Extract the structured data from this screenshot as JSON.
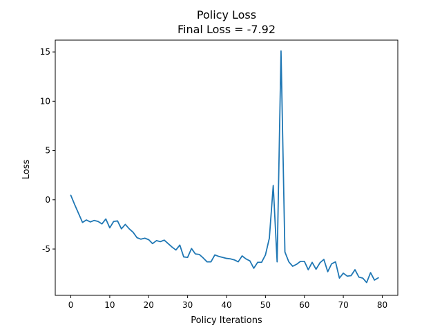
{
  "chart_data": {
    "type": "line",
    "title": "Policy Loss",
    "subtitle": "Final Loss = -7.92",
    "xlabel": "Policy Iterations",
    "ylabel": "Loss",
    "xlim": [
      -4,
      84
    ],
    "ylim": [
      -9.7,
      16.2
    ],
    "xticks": [
      0,
      10,
      20,
      30,
      40,
      50,
      60,
      70,
      80
    ],
    "yticks": [
      -5,
      0,
      5,
      10,
      15
    ],
    "grid": false,
    "series": [
      {
        "color": "#1f77b4",
        "x": [
          0,
          1,
          2,
          3,
          4,
          5,
          6,
          7,
          8,
          9,
          10,
          11,
          12,
          13,
          14,
          15,
          16,
          17,
          18,
          19,
          20,
          21,
          22,
          23,
          24,
          25,
          26,
          27,
          28,
          29,
          30,
          31,
          32,
          33,
          34,
          35,
          36,
          37,
          38,
          39,
          40,
          41,
          42,
          43,
          44,
          45,
          46,
          47,
          48,
          49,
          50,
          51,
          52,
          53,
          54,
          55,
          56,
          57,
          58,
          59,
          60,
          61,
          62,
          63,
          64,
          65,
          66,
          67,
          68,
          69,
          70,
          71,
          72,
          73,
          74,
          75,
          76,
          77,
          78,
          79
        ],
        "y": [
          0.45,
          -0.5,
          -1.4,
          -2.3,
          -2.05,
          -2.25,
          -2.1,
          -2.2,
          -2.45,
          -1.95,
          -2.85,
          -2.2,
          -2.15,
          -2.95,
          -2.5,
          -2.95,
          -3.3,
          -3.85,
          -4.0,
          -3.9,
          -4.05,
          -4.45,
          -4.15,
          -4.25,
          -4.1,
          -4.45,
          -4.8,
          -5.1,
          -4.6,
          -5.8,
          -5.85,
          -4.95,
          -5.5,
          -5.55,
          -5.9,
          -6.3,
          -6.3,
          -5.6,
          -5.75,
          -5.85,
          -5.95,
          -6.0,
          -6.1,
          -6.3,
          -5.7,
          -6.0,
          -6.2,
          -6.95,
          -6.35,
          -6.35,
          -5.6,
          -3.9,
          1.45,
          -6.3,
          15.1,
          -5.3,
          -6.3,
          -6.75,
          -6.55,
          -6.25,
          -6.25,
          -7.1,
          -6.35,
          -7.05,
          -6.4,
          -6.05,
          -7.3,
          -6.5,
          -6.3,
          -7.95,
          -7.45,
          -7.75,
          -7.7,
          -7.1,
          -7.85,
          -7.95,
          -8.4,
          -7.4,
          -8.15,
          -7.92
        ]
      }
    ]
  }
}
